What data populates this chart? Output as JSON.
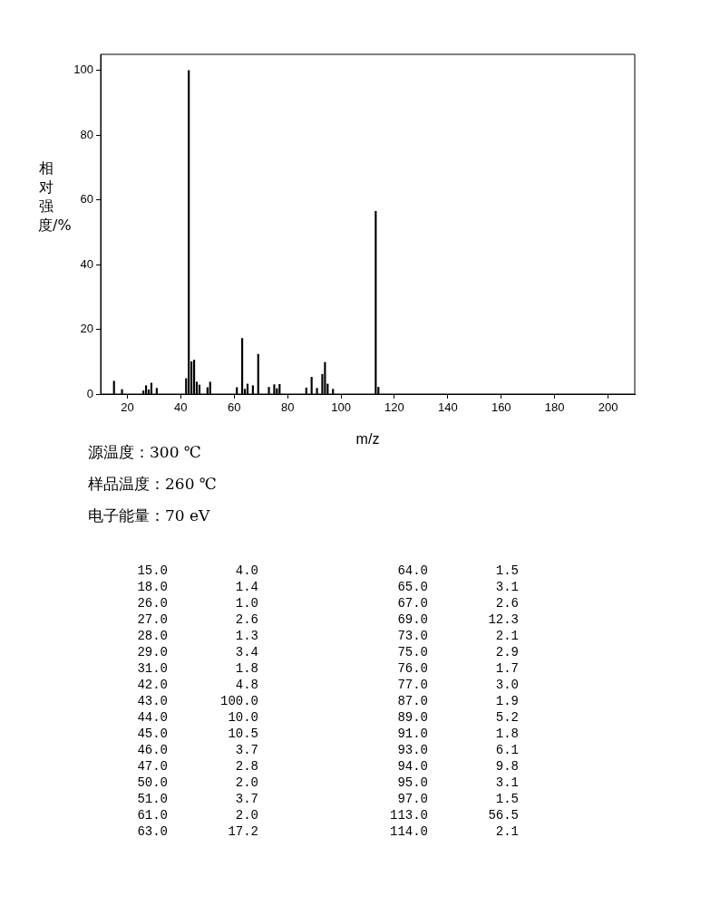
{
  "chart_data": [
    {
      "type": "bar",
      "ylabel": "相对强度/%",
      "xlabel": "m/z",
      "color": "#000000",
      "x": [
        15,
        18,
        26,
        27,
        28,
        29,
        31,
        42,
        43,
        44,
        45,
        46,
        47,
        50,
        51,
        61,
        63,
        64,
        65,
        67,
        69,
        73,
        75,
        76,
        77,
        87,
        89,
        91,
        93,
        94,
        95,
        97,
        113,
        114
      ],
      "values": [
        4.0,
        1.4,
        1.0,
        2.6,
        1.3,
        3.4,
        1.8,
        4.8,
        100.0,
        10.0,
        10.5,
        3.7,
        2.8,
        2.0,
        3.7,
        2.0,
        17.2,
        1.5,
        3.1,
        2.6,
        12.3,
        2.1,
        2.9,
        1.7,
        3.0,
        1.9,
        5.2,
        1.8,
        6.1,
        9.8,
        3.1,
        1.5,
        56.5,
        2.1
      ],
      "xlim": [
        10,
        210
      ],
      "ylim": [
        0,
        105
      ],
      "xticks": [
        20,
        40,
        60,
        80,
        100,
        120,
        140,
        160,
        180,
        200
      ],
      "yticks": [
        0,
        20,
        40,
        60,
        80,
        100
      ],
      "grid": false,
      "legend": false,
      "annotations": [
        "源温度：300 ℃",
        "样品温度：260 ℃",
        "电子能量：70 eV"
      ]
    },
    {
      "type": "other",
      "annotations": [
        "15.0",
        "4.0",
        "18.0",
        "1.4",
        "26.0",
        "1.0",
        "27.0",
        "2.6",
        "28.0",
        "1.3",
        "29.0",
        "3.4",
        "31.0",
        "1.8",
        "42.0",
        "4.8",
        "43.0",
        "100.0",
        "44.0",
        "10.0",
        "45.0",
        "10.5",
        "46.0",
        "3.7",
        "47.0",
        "2.8",
        "50.0",
        "2.0",
        "51.0",
        "3.7",
        "61.0",
        "2.0",
        "63.0",
        "17.2",
        "64.0",
        "1.5",
        "65.0",
        "3.1",
        "67.0",
        "2.6",
        "69.0",
        "12.3",
        "73.0",
        "2.1",
        "75.0",
        "2.9",
        "76.0",
        "1.7",
        "77.0",
        "3.0",
        "87.0",
        "1.9",
        "89.0",
        "5.2",
        "91.0",
        "1.8",
        "93.0",
        "6.1",
        "94.0",
        "9.8",
        "95.0",
        "3.1",
        "97.0",
        "1.5",
        "113.0",
        "56.5",
        "114.0",
        "2.1"
      ]
    }
  ]
}
